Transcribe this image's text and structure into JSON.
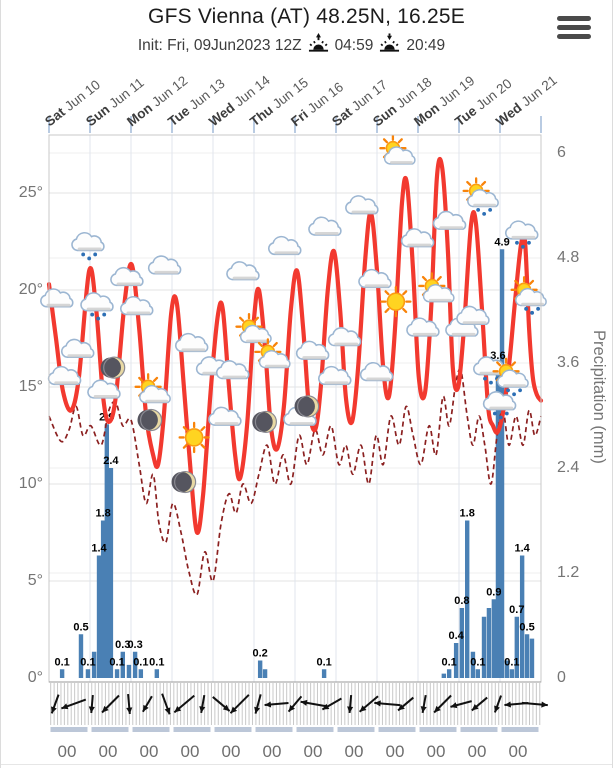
{
  "header": {
    "title": "GFS Vienna (AT) 48.25N, 16.25E",
    "init_label": "Init: Fri, 09Jun2023 12Z",
    "sunrise_time": "04:59",
    "sunset_time": "20:49",
    "menu_icon": "hamburger-menu"
  },
  "days": [
    {
      "weekday": "Sat",
      "date": "Jun 10"
    },
    {
      "weekday": "Sun",
      "date": "Jun 11"
    },
    {
      "weekday": "Mon",
      "date": "Jun 12"
    },
    {
      "weekday": "Tue",
      "date": "Jun 13"
    },
    {
      "weekday": "Wed",
      "date": "Jun 14"
    },
    {
      "weekday": "Thu",
      "date": "Jun 15"
    },
    {
      "weekday": "Fri",
      "date": "Jun 16"
    },
    {
      "weekday": "Sat",
      "date": "Jun 17"
    },
    {
      "weekday": "Sun",
      "date": "Jun 18"
    },
    {
      "weekday": "Mon",
      "date": "Jun 19"
    },
    {
      "weekday": "Tue",
      "date": "Jun 20"
    },
    {
      "weekday": "Wed",
      "date": "Jun 21"
    }
  ],
  "hour_tick_label": "00",
  "chart_data": {
    "type": "meteogram: line (temperature), dashed line (dew point), bar (precipitation), weather icons, wind arrows",
    "x_unit": "days since Sat Jun 10 00h, range 0-12",
    "temp_axis": {
      "ticks_c": [
        0,
        5,
        10,
        15,
        20,
        25
      ],
      "tick_suffix": "°",
      "range_c": [
        0,
        28
      ]
    },
    "precip_axis": {
      "label": "Precipitation (mm)",
      "ticks_mm": [
        0,
        1.2,
        2.4,
        3.6,
        4.8,
        6
      ],
      "range_mm": [
        0,
        6.2
      ]
    },
    "temperature_c": [
      [
        0,
        20.3
      ],
      [
        0.17,
        17.5
      ],
      [
        0.34,
        14.8
      ],
      [
        0.54,
        13.8
      ],
      [
        0.73,
        15.5
      ],
      [
        0.98,
        21.0
      ],
      [
        1.15,
        19.0
      ],
      [
        1.32,
        14.5
      ],
      [
        1.46,
        13.2
      ],
      [
        1.63,
        14.5
      ],
      [
        1.85,
        19.5
      ],
      [
        2.02,
        21.3
      ],
      [
        2.2,
        18.0
      ],
      [
        2.37,
        13.5
      ],
      [
        2.54,
        11.5
      ],
      [
        2.66,
        11.0
      ],
      [
        2.8,
        13.5
      ],
      [
        2.98,
        18.8
      ],
      [
        3.12,
        19.3
      ],
      [
        3.29,
        15.0
      ],
      [
        3.46,
        10.5
      ],
      [
        3.61,
        7.5
      ],
      [
        3.76,
        9.5
      ],
      [
        3.95,
        15.0
      ],
      [
        4.12,
        18.7
      ],
      [
        4.24,
        19.0
      ],
      [
        4.39,
        15.0
      ],
      [
        4.54,
        11.5
      ],
      [
        4.66,
        10.3
      ],
      [
        4.83,
        13.0
      ],
      [
        5.0,
        18.5
      ],
      [
        5.12,
        20.0
      ],
      [
        5.27,
        17.0
      ],
      [
        5.41,
        13.0
      ],
      [
        5.56,
        11.8
      ],
      [
        5.73,
        14.0
      ],
      [
        5.9,
        19.0
      ],
      [
        6.05,
        21.0
      ],
      [
        6.2,
        18.0
      ],
      [
        6.34,
        14.0
      ],
      [
        6.49,
        12.8
      ],
      [
        6.63,
        15.0
      ],
      [
        6.8,
        20.0
      ],
      [
        6.95,
        22.0
      ],
      [
        7.1,
        19.0
      ],
      [
        7.24,
        14.5
      ],
      [
        7.39,
        13.2
      ],
      [
        7.54,
        16.0
      ],
      [
        7.71,
        21.5
      ],
      [
        7.85,
        24.0
      ],
      [
        8.0,
        21.0
      ],
      [
        8.15,
        16.0
      ],
      [
        8.29,
        14.5
      ],
      [
        8.44,
        18.0
      ],
      [
        8.61,
        24.5
      ],
      [
        8.73,
        25.5
      ],
      [
        8.88,
        21.0
      ],
      [
        9.02,
        15.5
      ],
      [
        9.17,
        14.7
      ],
      [
        9.32,
        19.0
      ],
      [
        9.46,
        25.8
      ],
      [
        9.59,
        26.3
      ],
      [
        9.73,
        22.0
      ],
      [
        9.85,
        16.0
      ],
      [
        9.98,
        15.0
      ],
      [
        10.12,
        18.0
      ],
      [
        10.29,
        23.3
      ],
      [
        10.41,
        23.5
      ],
      [
        10.56,
        19.0
      ],
      [
        10.71,
        14.0
      ],
      [
        10.83,
        13.0
      ],
      [
        10.95,
        12.7
      ],
      [
        11.1,
        14.0
      ],
      [
        11.24,
        16.5
      ],
      [
        11.37,
        19.5
      ],
      [
        11.51,
        22.3
      ],
      [
        11.61,
        22.5
      ],
      [
        11.71,
        18.0
      ],
      [
        11.8,
        15.5
      ],
      [
        11.9,
        14.6
      ],
      [
        12,
        14.3
      ]
    ],
    "dewpoint_c": [
      [
        0,
        13.5
      ],
      [
        0.29,
        12.2
      ],
      [
        0.49,
        12.8
      ],
      [
        0.66,
        14.0
      ],
      [
        0.83,
        12.5
      ],
      [
        1.02,
        13.0
      ],
      [
        1.27,
        12.0
      ],
      [
        1.46,
        13.8
      ],
      [
        1.63,
        14.2
      ],
      [
        1.8,
        13.0
      ],
      [
        2.0,
        13.3
      ],
      [
        2.2,
        11.0
      ],
      [
        2.37,
        9.0
      ],
      [
        2.54,
        10.5
      ],
      [
        2.68,
        8.0
      ],
      [
        2.85,
        7.0
      ],
      [
        3.02,
        9.0
      ],
      [
        3.22,
        7.5
      ],
      [
        3.41,
        5.5
      ],
      [
        3.61,
        4.3
      ],
      [
        3.8,
        6.5
      ],
      [
        4.0,
        5.0
      ],
      [
        4.2,
        8.0
      ],
      [
        4.39,
        9.5
      ],
      [
        4.56,
        8.5
      ],
      [
        4.73,
        10.0
      ],
      [
        4.93,
        9.0
      ],
      [
        5.12,
        10.5
      ],
      [
        5.32,
        12.0
      ],
      [
        5.51,
        10.0
      ],
      [
        5.71,
        11.5
      ],
      [
        5.9,
        10.0
      ],
      [
        6.1,
        12.5
      ],
      [
        6.29,
        11.0
      ],
      [
        6.49,
        12.8
      ],
      [
        6.68,
        11.5
      ],
      [
        6.88,
        13.0
      ],
      [
        7.07,
        11.0
      ],
      [
        7.24,
        12.0
      ],
      [
        7.41,
        10.5
      ],
      [
        7.61,
        12.0
      ],
      [
        7.8,
        10.0
      ],
      [
        7.98,
        12.5
      ],
      [
        8.15,
        11.0
      ],
      [
        8.34,
        13.5
      ],
      [
        8.54,
        12.0
      ],
      [
        8.71,
        14.0
      ],
      [
        8.88,
        12.5
      ],
      [
        9.07,
        11.0
      ],
      [
        9.27,
        13.0
      ],
      [
        9.44,
        11.5
      ],
      [
        9.61,
        14.5
      ],
      [
        9.76,
        13.0
      ],
      [
        9.93,
        15.3
      ],
      [
        10.05,
        15.8
      ],
      [
        10.2,
        13.5
      ],
      [
        10.34,
        12.0
      ],
      [
        10.49,
        13.5
      ],
      [
        10.63,
        12.0
      ],
      [
        10.78,
        10.0
      ],
      [
        10.93,
        12.5
      ],
      [
        11.07,
        13.8
      ],
      [
        11.22,
        12.0
      ],
      [
        11.39,
        13.5
      ],
      [
        11.56,
        12.0
      ],
      [
        11.71,
        13.8
      ],
      [
        11.85,
        12.5
      ],
      [
        12,
        13.5
      ]
    ],
    "precipitation_mm": [
      {
        "d": 0.32,
        "v": 0.1,
        "labeled": true
      },
      {
        "d": 0.78,
        "v": 0.5,
        "labeled": true
      },
      {
        "d": 0.95,
        "v": 0.1,
        "labeled": true
      },
      {
        "d": 1.1,
        "v": 0.3,
        "labeled": false
      },
      {
        "d": 1.22,
        "v": 1.4,
        "labeled": true
      },
      {
        "d": 1.32,
        "v": 1.8,
        "labeled": true
      },
      {
        "d": 1.41,
        "v": 2.9,
        "labeled": true
      },
      {
        "d": 1.51,
        "v": 2.4,
        "labeled": true
      },
      {
        "d": 1.66,
        "v": 0.1,
        "labeled": true
      },
      {
        "d": 1.8,
        "v": 0.3,
        "labeled": true
      },
      {
        "d": 1.95,
        "v": 0.15,
        "labeled": false
      },
      {
        "d": 2.1,
        "v": 0.3,
        "labeled": true
      },
      {
        "d": 2.24,
        "v": 0.1,
        "labeled": true
      },
      {
        "d": 2.63,
        "v": 0.1,
        "labeled": true
      },
      {
        "d": 5.15,
        "v": 0.2,
        "labeled": true
      },
      {
        "d": 5.27,
        "v": 0.1,
        "labeled": false
      },
      {
        "d": 6.71,
        "v": 0.1,
        "labeled": true
      },
      {
        "d": 9.63,
        "v": 0.05,
        "labeled": false
      },
      {
        "d": 9.76,
        "v": 0.1,
        "labeled": true
      },
      {
        "d": 9.93,
        "v": 0.4,
        "labeled": true
      },
      {
        "d": 10.07,
        "v": 0.8,
        "labeled": true
      },
      {
        "d": 10.2,
        "v": 1.8,
        "labeled": true
      },
      {
        "d": 10.34,
        "v": 0.3,
        "labeled": false
      },
      {
        "d": 10.46,
        "v": 0.1,
        "labeled": true
      },
      {
        "d": 10.61,
        "v": 0.7,
        "labeled": false
      },
      {
        "d": 10.73,
        "v": 0.8,
        "labeled": false
      },
      {
        "d": 10.85,
        "v": 0.9,
        "labeled": true
      },
      {
        "d": 10.95,
        "v": 3.6,
        "labeled": true
      },
      {
        "d": 11.05,
        "v": 4.9,
        "labeled": true
      },
      {
        "d": 11.17,
        "v": 0.2,
        "labeled": false
      },
      {
        "d": 11.29,
        "v": 0.1,
        "labeled": true
      },
      {
        "d": 11.41,
        "v": 0.7,
        "labeled": true
      },
      {
        "d": 11.54,
        "v": 1.4,
        "labeled": true
      },
      {
        "d": 11.66,
        "v": 0.5,
        "labeled": true
      },
      {
        "d": 11.78,
        "v": 0.45,
        "labeled": false
      }
    ],
    "sky_icons": [
      {
        "d": 0.22,
        "t": 19.5,
        "type": "cloud"
      },
      {
        "d": 0.41,
        "t": 15.5,
        "type": "cloud"
      },
      {
        "d": 0.73,
        "t": 16.9,
        "type": "cloud"
      },
      {
        "d": 0.98,
        "t": 22.4,
        "type": "rain"
      },
      {
        "d": 1.2,
        "t": 19.3,
        "type": "rain"
      },
      {
        "d": 1.37,
        "t": 14.8,
        "type": "cloud"
      },
      {
        "d": 1.59,
        "t": 16.0,
        "type": "moon"
      },
      {
        "d": 1.93,
        "t": 20.6,
        "type": "cloud"
      },
      {
        "d": 2.17,
        "t": 19.1,
        "type": "cloud"
      },
      {
        "d": 2.49,
        "t": 13.3,
        "type": "moon"
      },
      {
        "d": 2.54,
        "t": 14.7,
        "type": "sun-cloud"
      },
      {
        "d": 2.85,
        "t": 21.2,
        "type": "cloud"
      },
      {
        "d": 3.32,
        "t": 10.1,
        "type": "moon"
      },
      {
        "d": 3.51,
        "t": 17.2,
        "type": "cloud"
      },
      {
        "d": 3.54,
        "t": 12.4,
        "type": "sun"
      },
      {
        "d": 4.02,
        "t": 16.0,
        "type": "cloud"
      },
      {
        "d": 4.32,
        "t": 13.4,
        "type": "cloud"
      },
      {
        "d": 4.51,
        "t": 15.8,
        "type": "cloud"
      },
      {
        "d": 4.76,
        "t": 20.9,
        "type": "cloud"
      },
      {
        "d": 5.0,
        "t": 17.8,
        "type": "sun-cloud"
      },
      {
        "d": 5.29,
        "t": 13.2,
        "type": "moon"
      },
      {
        "d": 5.46,
        "t": 16.5,
        "type": "sun-cloud"
      },
      {
        "d": 5.78,
        "t": 22.2,
        "type": "cloud"
      },
      {
        "d": 6.15,
        "t": 13.4,
        "type": "cloud"
      },
      {
        "d": 6.32,
        "t": 14.0,
        "type": "moon"
      },
      {
        "d": 6.46,
        "t": 16.8,
        "type": "cloud"
      },
      {
        "d": 6.76,
        "t": 23.2,
        "type": "cloud"
      },
      {
        "d": 7.0,
        "t": 15.5,
        "type": "cloud"
      },
      {
        "d": 7.24,
        "t": 17.5,
        "type": "cloud"
      },
      {
        "d": 7.66,
        "t": 24.3,
        "type": "cloud"
      },
      {
        "d": 7.98,
        "t": 20.5,
        "type": "cloud"
      },
      {
        "d": 8.02,
        "t": 15.7,
        "type": "cloud"
      },
      {
        "d": 8.46,
        "t": 19.4,
        "type": "sun"
      },
      {
        "d": 8.51,
        "t": 27.0,
        "type": "sun-cloud"
      },
      {
        "d": 9.02,
        "t": 22.6,
        "type": "cloud"
      },
      {
        "d": 9.15,
        "t": 18.0,
        "type": "cloud"
      },
      {
        "d": 9.46,
        "t": 19.9,
        "type": "sun-cloud"
      },
      {
        "d": 9.8,
        "t": 23.5,
        "type": "cloud"
      },
      {
        "d": 10.1,
        "t": 18.0,
        "type": "cloud"
      },
      {
        "d": 10.37,
        "t": 18.6,
        "type": "cloud"
      },
      {
        "d": 10.54,
        "t": 24.8,
        "type": "sun-rain"
      },
      {
        "d": 10.78,
        "t": 16.0,
        "type": "rain"
      },
      {
        "d": 11.02,
        "t": 14.2,
        "type": "rain"
      },
      {
        "d": 11.27,
        "t": 15.5,
        "type": "sun-rain"
      },
      {
        "d": 11.56,
        "t": 23.0,
        "type": "rain"
      },
      {
        "d": 11.71,
        "t": 19.7,
        "type": "sun-rain"
      }
    ],
    "wind_arrows": [
      {
        "d": 0.15,
        "dir_deg": 110,
        "len": 20
      },
      {
        "d": 0.6,
        "dir_deg": 160,
        "len": 26
      },
      {
        "d": 1.05,
        "dir_deg": 95,
        "len": 18
      },
      {
        "d": 1.5,
        "dir_deg": 135,
        "len": 24
      },
      {
        "d": 1.95,
        "dir_deg": 85,
        "len": 20
      },
      {
        "d": 2.4,
        "dir_deg": 120,
        "len": 18
      },
      {
        "d": 2.85,
        "dir_deg": 70,
        "len": 22
      },
      {
        "d": 3.3,
        "dir_deg": 140,
        "len": 26
      },
      {
        "d": 3.75,
        "dir_deg": 100,
        "len": 18
      },
      {
        "d": 4.2,
        "dir_deg": 40,
        "len": 22
      },
      {
        "d": 4.65,
        "dir_deg": 135,
        "len": 26
      },
      {
        "d": 5.1,
        "dir_deg": 105,
        "len": 20
      },
      {
        "d": 5.55,
        "dir_deg": 175,
        "len": 24
      },
      {
        "d": 6.0,
        "dir_deg": 130,
        "len": 20
      },
      {
        "d": 6.45,
        "dir_deg": 190,
        "len": 26
      },
      {
        "d": 6.9,
        "dir_deg": 150,
        "len": 22
      },
      {
        "d": 7.35,
        "dir_deg": 95,
        "len": 18
      },
      {
        "d": 7.8,
        "dir_deg": 140,
        "len": 24
      },
      {
        "d": 8.25,
        "dir_deg": 185,
        "len": 26
      },
      {
        "d": 8.7,
        "dir_deg": 140,
        "len": 20
      },
      {
        "d": 9.15,
        "dir_deg": 100,
        "len": 18
      },
      {
        "d": 9.6,
        "dir_deg": 135,
        "len": 24
      },
      {
        "d": 10.05,
        "dir_deg": 165,
        "len": 22
      },
      {
        "d": 10.5,
        "dir_deg": 140,
        "len": 20
      },
      {
        "d": 10.95,
        "dir_deg": 110,
        "len": 18
      },
      {
        "d": 11.4,
        "dir_deg": 175,
        "len": 24
      },
      {
        "d": 11.85,
        "dir_deg": 5,
        "len": 26
      }
    ],
    "colors": {
      "temperature": "#f2392f",
      "dewpoint": "#8b2020",
      "precipitation": "#4a80b4",
      "grid": "#e3e3e3",
      "precip_grid": "#efefef",
      "day_grid": "#e0e5ed",
      "frame": "#c8c8c8",
      "axis_text": "#757575",
      "bar_label": "#000000",
      "wind": "#111111",
      "day_tick": "#b9cbe2",
      "segment_row": "#bcc7d8"
    }
  }
}
